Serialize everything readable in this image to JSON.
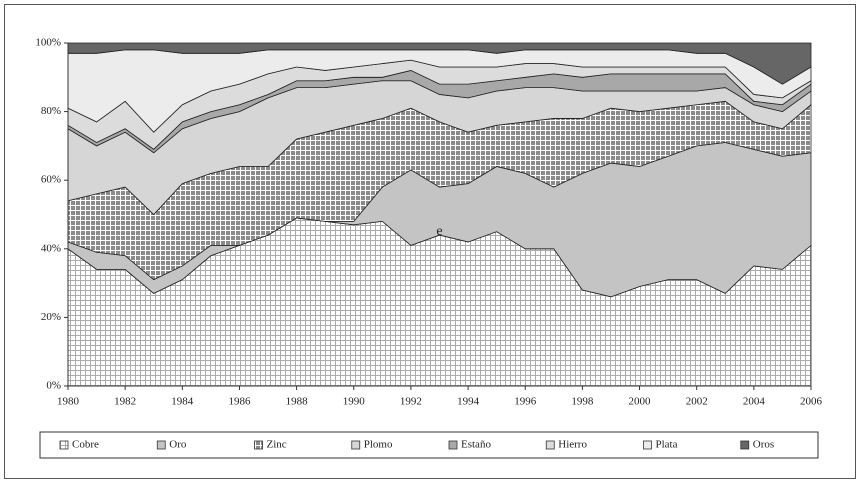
{
  "chart_data": {
    "type": "stacked_area_percent",
    "x": [
      1980,
      1981,
      1982,
      1983,
      1984,
      1985,
      1986,
      1987,
      1988,
      1989,
      1990,
      1991,
      1992,
      1993,
      1994,
      1995,
      1996,
      1997,
      1998,
      1999,
      2000,
      2001,
      2002,
      2003,
      2004,
      2005,
      2006
    ],
    "xlim": [
      1980,
      2006
    ],
    "xticks": [
      1980,
      1982,
      1984,
      1986,
      1988,
      1990,
      1992,
      1994,
      1996,
      1998,
      2000,
      2002,
      2004,
      2006
    ],
    "ylim": [
      0,
      100
    ],
    "yticks": [
      {
        "value": 0,
        "label": "0%"
      },
      {
        "value": 20,
        "label": "20%"
      },
      {
        "value": 40,
        "label": "40%"
      },
      {
        "value": 60,
        "label": "60%"
      },
      {
        "value": 80,
        "label": "80%"
      },
      {
        "value": 100,
        "label": "100%"
      }
    ],
    "legend": "bottom",
    "annotation": {
      "text": "e",
      "x": 1993,
      "y": 45
    },
    "series": [
      {
        "name": "Cobre",
        "color": "#ffffff",
        "pattern": "grid",
        "values": [
          40,
          34,
          34,
          27,
          31,
          38,
          41,
          44,
          49,
          48,
          47,
          48,
          41,
          44,
          42,
          45,
          40,
          40,
          28,
          26,
          29,
          31,
          31,
          27,
          35,
          34,
          41
        ]
      },
      {
        "name": "Oro",
        "color": "#c4c4c4",
        "values": [
          2,
          5,
          4,
          4,
          4,
          3,
          0,
          0,
          0,
          0,
          1,
          10,
          22,
          14,
          17,
          19,
          22,
          18,
          34,
          39,
          35,
          36,
          39,
          44,
          34,
          33,
          27
        ]
      },
      {
        "name": "Zinc",
        "color": "#8a8a8a",
        "pattern": "grid",
        "values": [
          12,
          17,
          20,
          19,
          24,
          21,
          23,
          20,
          23,
          26,
          28,
          20,
          18,
          19,
          15,
          12,
          15,
          20,
          16,
          16,
          16,
          14,
          12,
          12,
          8,
          8,
          14
        ]
      },
      {
        "name": "Plomo",
        "color": "#d6d6d6",
        "values": [
          21,
          14,
          16,
          18,
          16,
          16,
          16,
          20,
          15,
          13,
          12,
          11,
          8,
          8,
          10,
          10,
          10,
          9,
          8,
          5,
          6,
          5,
          4,
          4,
          5,
          5,
          4
        ]
      },
      {
        "name": "Estaño",
        "color": "#a8a8a8",
        "values": [
          1,
          1,
          1,
          1,
          2,
          2,
          2,
          1,
          2,
          2,
          2,
          1,
          3,
          3,
          4,
          3,
          3,
          4,
          4,
          5,
          5,
          5,
          5,
          4,
          1,
          2,
          2
        ]
      },
      {
        "name": "Hierro",
        "color": "#dcdcdc",
        "values": [
          5,
          6,
          8,
          5,
          5,
          6,
          6,
          6,
          4,
          3,
          3,
          4,
          3,
          5,
          5,
          4,
          4,
          3,
          3,
          2,
          2,
          2,
          2,
          2,
          2,
          2,
          1
        ]
      },
      {
        "name": "Plata",
        "color": "#ececec",
        "values": [
          16,
          20,
          15,
          24,
          15,
          11,
          9,
          7,
          5,
          6,
          5,
          4,
          3,
          5,
          5,
          4,
          4,
          4,
          5,
          5,
          5,
          5,
          4,
          4,
          8,
          4,
          4
        ]
      },
      {
        "name": "Oros",
        "color": "#666666",
        "values": [
          3,
          3,
          2,
          2,
          3,
          3,
          3,
          2,
          2,
          2,
          2,
          2,
          2,
          2,
          2,
          3,
          2,
          2,
          2,
          2,
          2,
          2,
          3,
          3,
          7,
          12,
          7
        ]
      }
    ]
  }
}
